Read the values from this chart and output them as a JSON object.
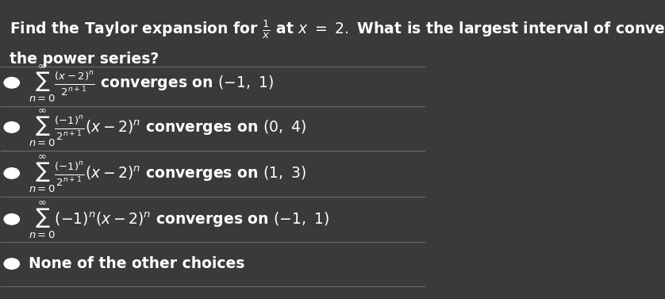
{
  "background_color": "#3a3a3a",
  "text_color": "#ffffff",
  "title_line1": "Find the Taylor expansion for $\\frac{1}{x}$ at $x\\ =\\ 2.$ What is the largest interval of convergence for",
  "title_line2": "the power series?",
  "options": [
    {
      "bullet": true,
      "text": "$\\sum_{n=0}^{\\infty} \\frac{(x-2)^n}{2^{n+1}}$ converges on $(-1,\\ 1)$"
    },
    {
      "bullet": true,
      "text": "$\\sum_{n=0}^{\\infty} \\frac{(-1)^n}{2^{n+1}}(x-2)^n$ converges on $(0,\\ 4)$"
    },
    {
      "bullet": true,
      "text": "$\\sum_{n=0}^{\\infty} \\frac{(-1)^n}{2^{n+1}}(x-2)^n$ converges on $(1,\\ 3)$"
    },
    {
      "bullet": true,
      "text": "$\\sum_{n=0}^{\\infty}(-1)^n(x-2)^n$ converges on $(-1,\\ 1)$"
    },
    {
      "bullet": true,
      "text": "None of the other choices"
    }
  ],
  "divider_color": "#888888",
  "bullet_color": "#ffffff",
  "title_fontsize": 13.5,
  "option_fontsize": 13.5,
  "figsize": [
    8.38,
    3.77
  ],
  "dpi": 100
}
